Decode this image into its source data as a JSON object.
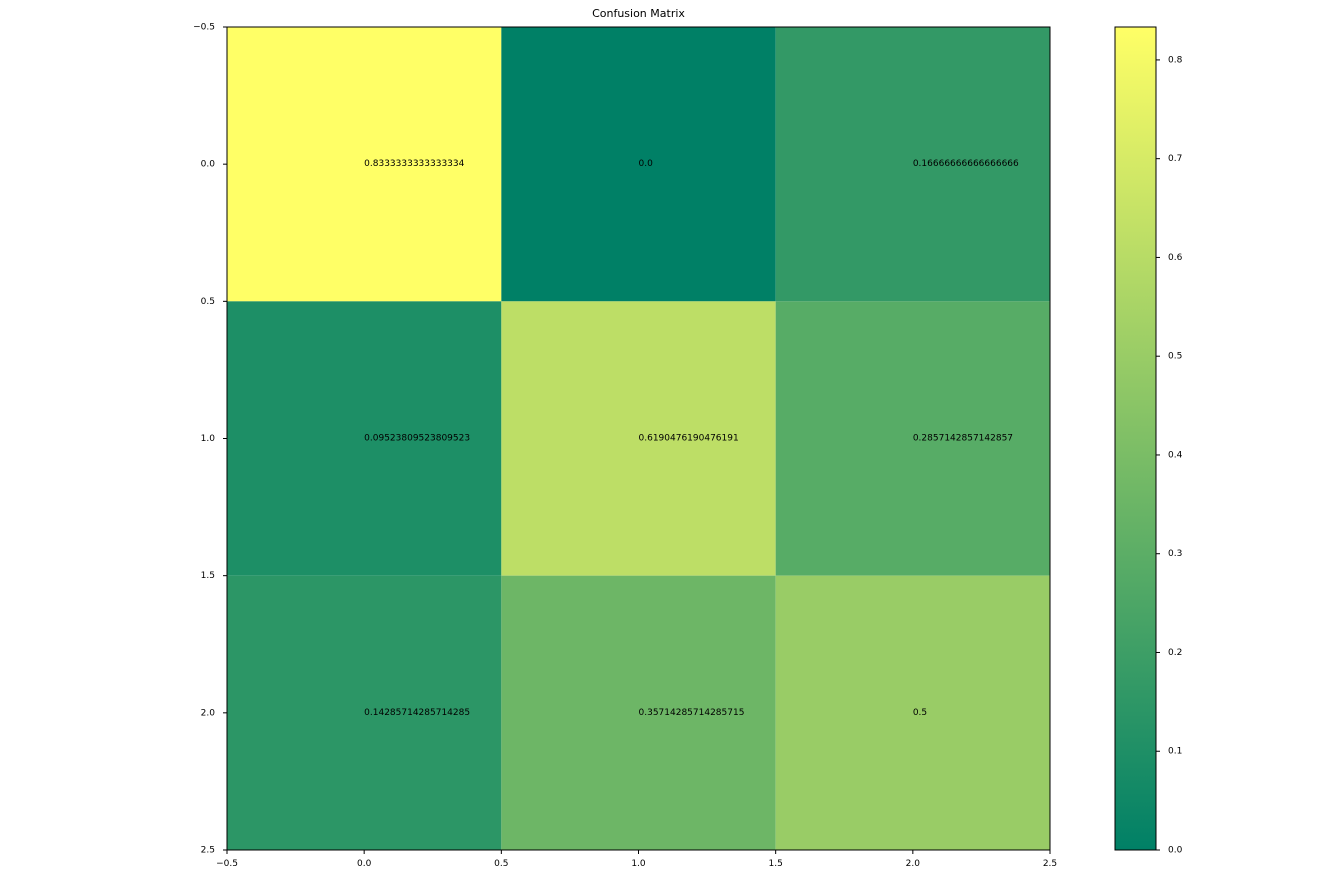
{
  "chart_data": {
    "type": "heatmap",
    "title": "Confusion Matrix",
    "colormap": [
      "#008066",
      "#ffff66"
    ],
    "matrix": [
      [
        0.8333333333333334,
        0.0,
        0.16666666666666666
      ],
      [
        0.09523809523809523,
        0.6190476190476191,
        0.2857142857142857
      ],
      [
        0.14285714285714285,
        0.35714285714285715,
        0.5
      ]
    ],
    "cell_labels": [
      [
        "0.8333333333333334",
        "0.0",
        "0.16666666666666666"
      ],
      [
        "0.09523809523809523",
        "0.6190476190476191",
        "0.2857142857142857"
      ],
      [
        "0.14285714285714285",
        "0.35714285714285715",
        "0.5"
      ]
    ],
    "xlim": [
      -0.5,
      2.5
    ],
    "ylim": [
      2.5,
      -0.5
    ],
    "x_ticks": [
      -0.5,
      0.0,
      0.5,
      1.0,
      1.5,
      2.0,
      2.5
    ],
    "x_tick_labels": [
      "−0.5",
      "0.0",
      "0.5",
      "1.0",
      "1.5",
      "2.0",
      "2.5"
    ],
    "y_ticks": [
      -0.5,
      0.0,
      0.5,
      1.0,
      1.5,
      2.0,
      2.5
    ],
    "y_tick_labels": [
      "−0.5",
      "0.0",
      "0.5",
      "1.0",
      "1.5",
      "2.0",
      "2.5"
    ],
    "colorbar": {
      "range": [
        0.0,
        0.8333333333333334
      ],
      "ticks": [
        0.0,
        0.1,
        0.2,
        0.3,
        0.4,
        0.5,
        0.6,
        0.7,
        0.8
      ],
      "tick_labels": [
        "0.0",
        "0.1",
        "0.2",
        "0.3",
        "0.4",
        "0.5",
        "0.6",
        "0.7",
        "0.8"
      ]
    },
    "grid": false,
    "legend": "none"
  }
}
